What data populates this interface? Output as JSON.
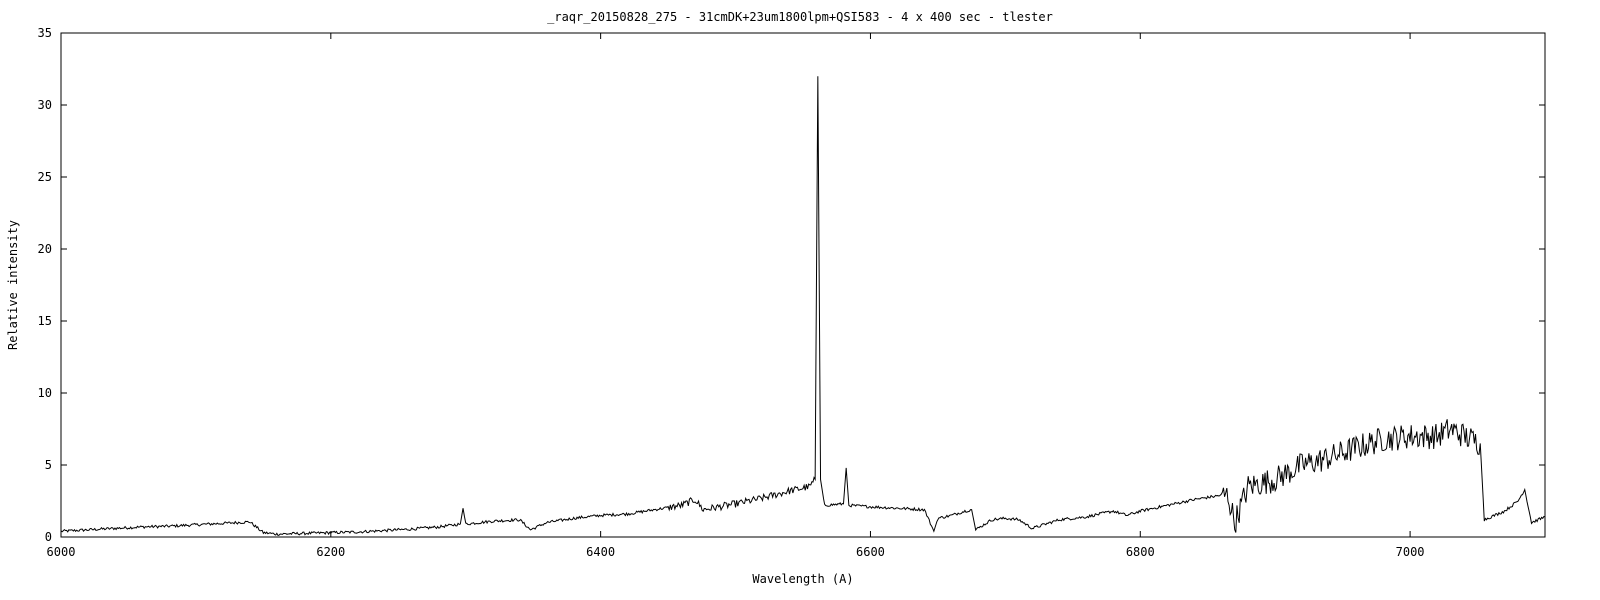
{
  "chart_data": {
    "type": "line",
    "title": "_raqr_20150828_275 - 31cmDK+23um1800lpm+QSI583 - 4 x 400 sec - tlester",
    "xlabel": "Wavelength (A)",
    "ylabel": "Relative intensity",
    "xlim": [
      6000,
      7100
    ],
    "ylim": [
      0,
      35
    ],
    "x_ticks": [
      6000,
      6200,
      6400,
      6600,
      6800,
      7000
    ],
    "y_ticks": [
      0,
      5,
      10,
      15,
      20,
      25,
      30,
      35
    ],
    "grid": false,
    "legend": "none",
    "line_color": "#000000",
    "series": [
      {
        "x": [
          6000,
          6020,
          6040,
          6060,
          6080,
          6100,
          6120,
          6140,
          6150,
          6160,
          6180,
          6200,
          6220,
          6240,
          6260,
          6280,
          6296,
          6298,
          6300,
          6320,
          6340,
          6348,
          6360,
          6380,
          6400,
          6420,
          6440,
          6460,
          6470,
          6476,
          6500,
          6520,
          6540,
          6555,
          6559,
          6560,
          6561,
          6562,
          6563,
          6566,
          6580,
          6582,
          6584,
          6600,
          6620,
          6640,
          6647,
          6650,
          6660,
          6670,
          6675,
          6678,
          6690,
          6700,
          6710,
          6720,
          6740,
          6760,
          6780,
          6790,
          6800,
          6820,
          6840,
          6860,
          6865,
          6870,
          6880,
          6900,
          6920,
          6940,
          6960,
          6980,
          7000,
          7020,
          7030,
          7045,
          7052,
          7055,
          7060,
          7070,
          7080,
          7085,
          7090,
          7100
        ],
        "y": [
          0.4,
          0.5,
          0.6,
          0.7,
          0.75,
          0.85,
          0.95,
          1.05,
          0.3,
          0.2,
          0.25,
          0.3,
          0.35,
          0.45,
          0.55,
          0.7,
          0.9,
          2.0,
          0.9,
          1.1,
          1.2,
          0.5,
          1.0,
          1.3,
          1.5,
          1.6,
          1.9,
          2.2,
          2.6,
          1.9,
          2.3,
          2.7,
          3.2,
          3.5,
          4.0,
          18.0,
          32.0,
          18.0,
          4.0,
          2.2,
          2.3,
          4.8,
          2.2,
          2.1,
          2.0,
          1.9,
          0.4,
          1.3,
          1.5,
          1.8,
          1.9,
          0.5,
          1.2,
          1.3,
          1.2,
          0.6,
          1.2,
          1.4,
          1.8,
          1.5,
          1.8,
          2.2,
          2.6,
          2.9,
          2.9,
          1.0,
          3.5,
          4.0,
          5.0,
          5.5,
          6.2,
          6.8,
          7.0,
          7.0,
          7.5,
          6.8,
          6.5,
          1.2,
          1.4,
          1.8,
          2.5,
          3.3,
          1.0,
          1.4
        ]
      }
    ]
  }
}
